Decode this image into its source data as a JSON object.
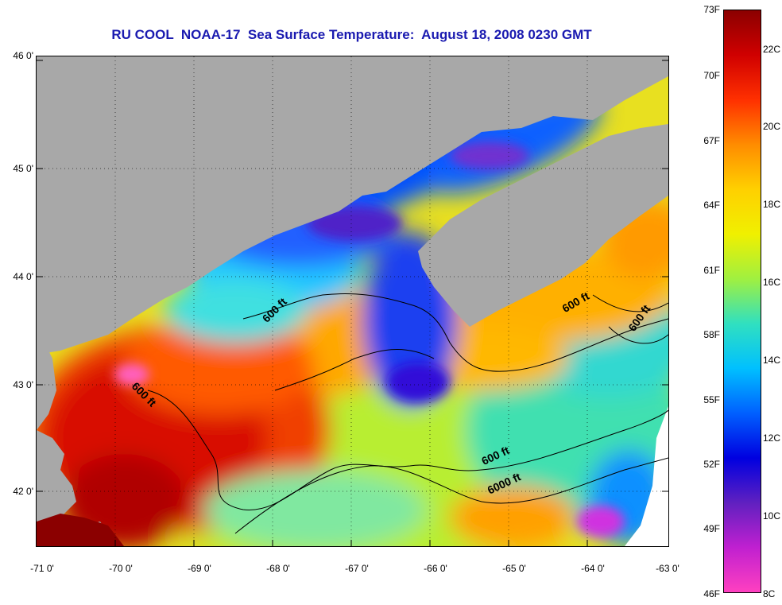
{
  "title": "RU COOL  NOAA-17  Sea Surface Temperature:  August 18, 2008 0230 GMT",
  "axes": {
    "lat_labels": [
      "46 0'",
      "45 0'",
      "44 0'",
      "43 0'",
      "42 0'"
    ],
    "lon_labels": [
      "-71 0'",
      "-70 0'",
      "-69 0'",
      "-68 0'",
      "-67 0'",
      "-66 0'",
      "-65 0'",
      "-64 0'",
      "-63 0'"
    ],
    "lat_range": [
      41.5,
      46.0
    ],
    "lon_range": [
      -71.0,
      -63.0
    ]
  },
  "contour_labels": [
    "600 ft",
    "600 ft",
    "600 ft",
    "600 ft",
    "600 ft",
    "6000 ft"
  ],
  "colorbar": {
    "fahrenheit": [
      "73F",
      "70F",
      "67F",
      "64F",
      "61F",
      "58F",
      "55F",
      "52F",
      "49F",
      "46F"
    ],
    "celsius": [
      "22C",
      "20C",
      "18C",
      "16C",
      "14C",
      "12C",
      "10C",
      "8C"
    ],
    "gradient": [
      "#8b0000",
      "#d00000",
      "#ff3000",
      "#ff8c00",
      "#ffd000",
      "#f0f000",
      "#a0f040",
      "#30e0c0",
      "#00c0ff",
      "#0060ff",
      "#0000e0",
      "#6020c0",
      "#c020d0",
      "#ff40c0"
    ]
  },
  "colors": {
    "land": "#a8a8a8",
    "cold_water": "#0050ff",
    "warm_water": "#e02000",
    "title": "#1a1ab0"
  }
}
